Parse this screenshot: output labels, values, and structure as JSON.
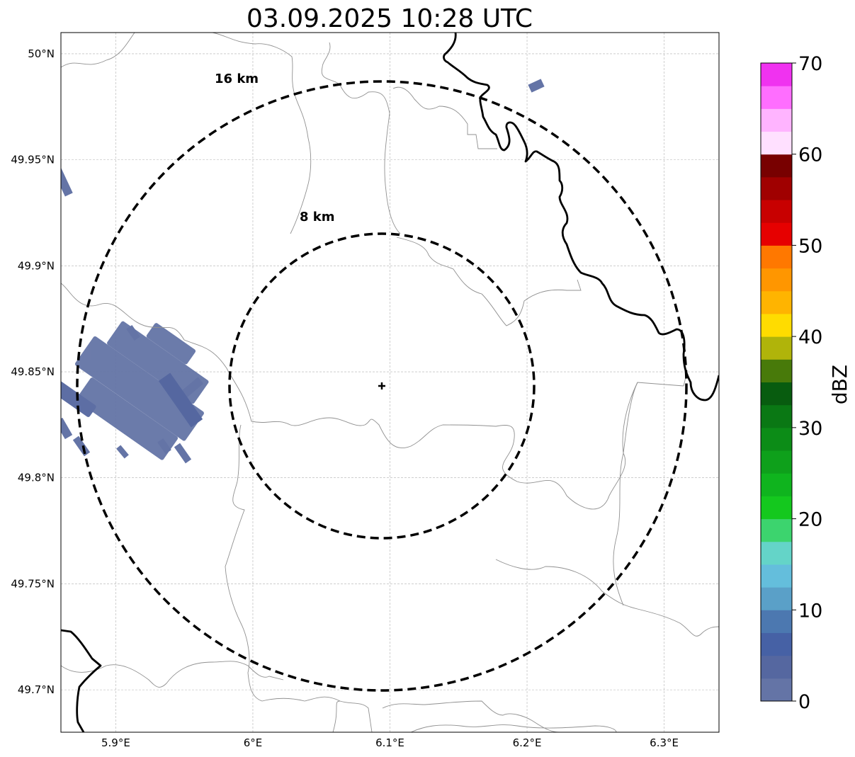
{
  "title": "03.09.2025 10:28 UTC",
  "map": {
    "lon_range": [
      5.86,
      6.34
    ],
    "lat_range": [
      49.68,
      50.01
    ],
    "lon_ticks": [
      {
        "value": 5.9,
        "label": "5.9°E"
      },
      {
        "value": 6.0,
        "label": "6°E"
      },
      {
        "value": 6.1,
        "label": "6.1°E"
      },
      {
        "value": 6.2,
        "label": "6.2°E"
      },
      {
        "value": 6.3,
        "label": "6.3°E"
      }
    ],
    "lat_ticks": [
      {
        "value": 50.0,
        "label": "50°N"
      },
      {
        "value": 49.95,
        "label": "49.95°N"
      },
      {
        "value": 49.9,
        "label": "49.9°N"
      },
      {
        "value": 49.85,
        "label": "49.85°N"
      },
      {
        "value": 49.8,
        "label": "49.8°N"
      },
      {
        "value": 49.75,
        "label": "49.75°N"
      },
      {
        "value": 49.7,
        "label": "49.7°N"
      }
    ],
    "gridlines": true,
    "radar_site": {
      "lon": 6.094,
      "lat": 49.843
    },
    "range_rings": [
      {
        "radius_km": 8,
        "label": "8 km"
      },
      {
        "radius_km": 16,
        "label": "16 km"
      }
    ]
  },
  "chart_data": {
    "type": "heatmap",
    "title": "03.09.2025 10:28 UTC",
    "echoes_dbz_approx": "0-10 (weak echoes west of site and at NE)",
    "colorbar": {
      "label": "dBZ",
      "range": [
        0,
        70
      ],
      "ticks": [
        {
          "value": 0,
          "label": "0"
        },
        {
          "value": 10,
          "label": "10"
        },
        {
          "value": 20,
          "label": "20"
        },
        {
          "value": 30,
          "label": "30"
        },
        {
          "value": 40,
          "label": "40"
        },
        {
          "value": 50,
          "label": "50"
        },
        {
          "value": 60,
          "label": "60"
        },
        {
          "value": 70,
          "label": "70"
        }
      ],
      "colors": [
        "#6474a6",
        "#5567a0",
        "#4661a5",
        "#4c78b0",
        "#5aa0c8",
        "#64bedc",
        "#64d4c8",
        "#3cd46e",
        "#14c81e",
        "#0fb41e",
        "#0ea01b",
        "#0c8c17",
        "#0a7814",
        "#085c0f",
        "#487a0a",
        "#b0b40a",
        "#ffdc00",
        "#ffb400",
        "#ff9600",
        "#ff7800",
        "#e60000",
        "#c80000",
        "#a00000",
        "#780000",
        "#ffe0ff",
        "#ffb4ff",
        "#ff6eff",
        "#f032f0"
      ]
    }
  }
}
